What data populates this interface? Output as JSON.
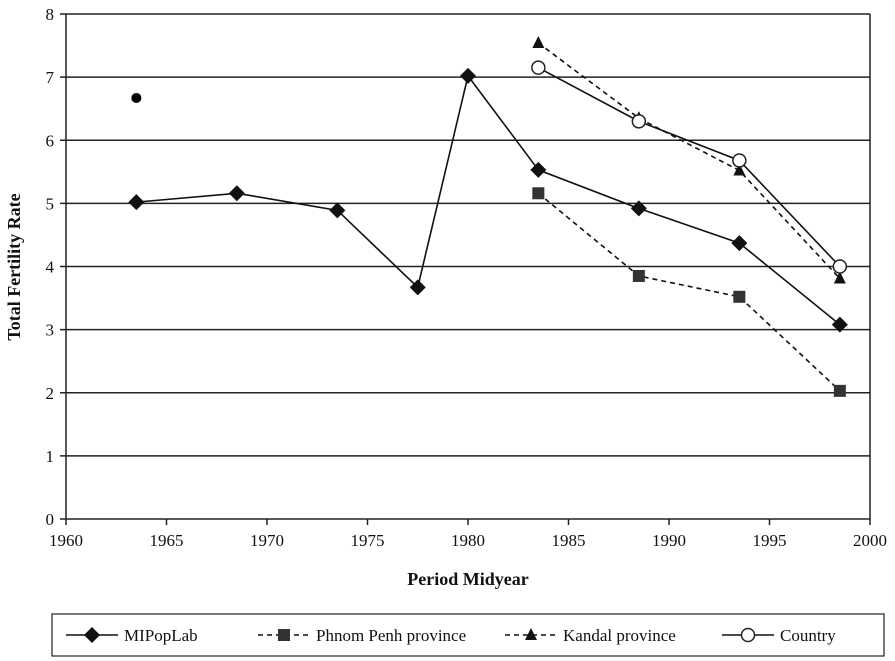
{
  "chart_data": {
    "type": "line",
    "title": "",
    "xlabel": "Period Midyear",
    "ylabel": "Total Fertility Rate",
    "xlim": [
      1960,
      2000
    ],
    "ylim": [
      0,
      8
    ],
    "xticks": [
      "1960",
      "1965",
      "1970",
      "1975",
      "1980",
      "1985",
      "1990",
      "1995",
      "2000"
    ],
    "yticks": [
      "0",
      "1",
      "2",
      "3",
      "4",
      "5",
      "6",
      "7",
      "8"
    ],
    "grid": "horizontal",
    "legend_position": "bottom",
    "series": [
      {
        "name": "MIPopLab",
        "line": "solid",
        "marker": "diamond",
        "x": [
          1963.5,
          1968.5,
          1973.5,
          1977.5,
          1980,
          1983.5,
          1988.5,
          1993.5,
          1998.5
        ],
        "y": [
          5.02,
          5.16,
          4.89,
          3.67,
          7.02,
          5.53,
          4.92,
          4.37,
          3.08
        ]
      },
      {
        "name": "Phnom Penh province",
        "line": "dashed",
        "marker": "square",
        "x": [
          1983.5,
          1988.5,
          1993.5,
          1998.5
        ],
        "y": [
          5.16,
          3.85,
          3.52,
          2.03
        ]
      },
      {
        "name": "Kandal province",
        "line": "dashed",
        "marker": "triangle",
        "x": [
          1983.5,
          1988.5,
          1993.5,
          1998.5
        ],
        "y": [
          7.54,
          6.35,
          5.52,
          3.81
        ]
      },
      {
        "name": "Country",
        "line": "solid",
        "marker": "circle-open",
        "x": [
          1983.5,
          1988.5,
          1993.5,
          1998.5
        ],
        "y": [
          7.15,
          6.3,
          5.68,
          4.0
        ]
      }
    ],
    "extra_points": [
      {
        "x": 1963.5,
        "y": 6.67,
        "marker": "dot"
      }
    ]
  }
}
